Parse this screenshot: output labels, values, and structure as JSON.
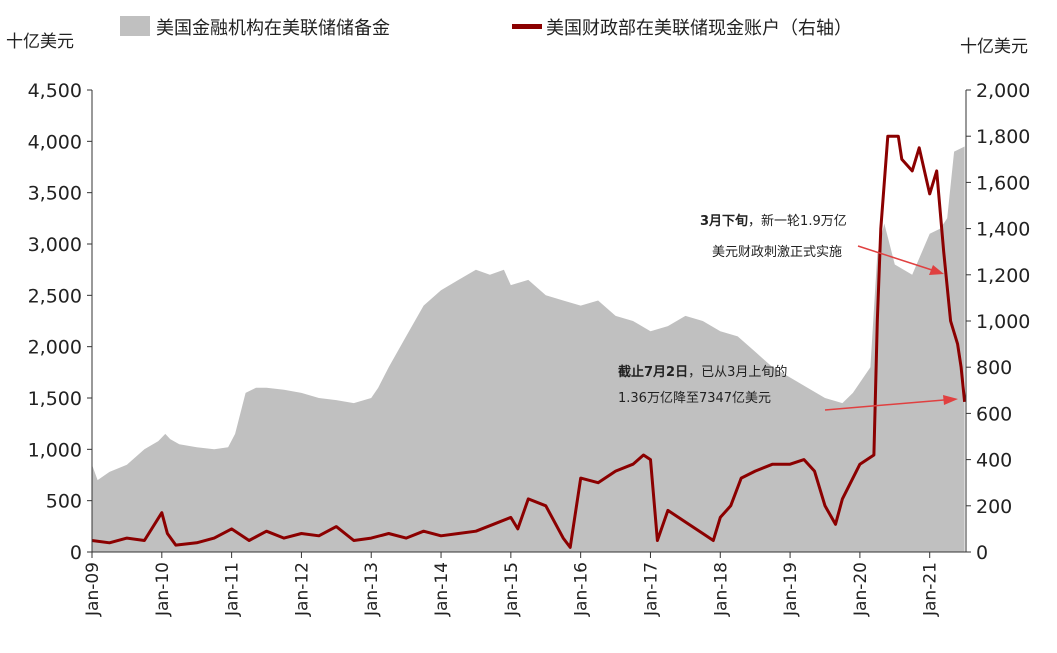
{
  "chart_data": {
    "type": "area+line",
    "left_axis": {
      "unit": "十亿美元",
      "ylim": [
        0,
        4500
      ],
      "ticks": [
        "0",
        "500",
        "1,000",
        "1,500",
        "2,000",
        "2,500",
        "3,000",
        "3,500",
        "4,000",
        "4,500"
      ]
    },
    "right_axis": {
      "unit": "十亿美元",
      "ylim": [
        0,
        2000
      ],
      "ticks": [
        "0",
        "200",
        "400",
        "600",
        "800",
        "1,000",
        "1,200",
        "1,400",
        "1,600",
        "1,800",
        "2,000"
      ]
    },
    "x_ticks": [
      "Jan-09",
      "Jan-10",
      "Jan-11",
      "Jan-12",
      "Jan-13",
      "Jan-14",
      "Jan-15",
      "Jan-16",
      "Jan-17",
      "Jan-18",
      "Jan-19",
      "Jan-20",
      "Jan-21"
    ],
    "xlim": [
      2009.0,
      2021.52
    ],
    "series": [
      {
        "name": "美国金融机构在美联储储备金",
        "axis": "left",
        "kind": "area",
        "color": "#c0c0c0",
        "x": [
          2009.0,
          2009.08,
          2009.25,
          2009.5,
          2009.75,
          2009.95,
          2010.05,
          2010.12,
          2010.25,
          2010.5,
          2010.75,
          2010.95,
          2011.05,
          2011.2,
          2011.35,
          2011.5,
          2011.75,
          2012.0,
          2012.25,
          2012.5,
          2012.75,
          2013.0,
          2013.1,
          2013.25,
          2013.5,
          2013.75,
          2014.0,
          2014.25,
          2014.5,
          2014.7,
          2014.9,
          2015.0,
          2015.25,
          2015.5,
          2015.75,
          2016.0,
          2016.25,
          2016.5,
          2016.75,
          2017.0,
          2017.25,
          2017.5,
          2017.75,
          2018.0,
          2018.25,
          2018.5,
          2018.75,
          2019.0,
          2019.25,
          2019.5,
          2019.75,
          2019.9,
          2020.0,
          2020.15,
          2020.25,
          2020.35,
          2020.5,
          2020.75,
          2021.0,
          2021.15,
          2021.25,
          2021.35,
          2021.5
        ],
        "values": [
          850,
          700,
          780,
          850,
          1000,
          1080,
          1150,
          1100,
          1050,
          1020,
          1000,
          1020,
          1150,
          1550,
          1600,
          1600,
          1580,
          1550,
          1500,
          1480,
          1450,
          1500,
          1600,
          1800,
          2100,
          2400,
          2550,
          2650,
          2750,
          2700,
          2750,
          2600,
          2650,
          2500,
          2450,
          2400,
          2450,
          2300,
          2250,
          2150,
          2200,
          2300,
          2250,
          2150,
          2100,
          1950,
          1800,
          1700,
          1600,
          1500,
          1450,
          1550,
          1650,
          1800,
          2900,
          3200,
          2800,
          2700,
          3100,
          3150,
          3250,
          3900,
          3950
        ]
      },
      {
        "name": "美国财政部在美联储现金账户（右轴）",
        "axis": "right",
        "kind": "line",
        "color": "#8b0000",
        "x": [
          2009.0,
          2009.25,
          2009.5,
          2009.75,
          2010.0,
          2010.08,
          2010.2,
          2010.5,
          2010.75,
          2011.0,
          2011.25,
          2011.5,
          2011.75,
          2012.0,
          2012.25,
          2012.5,
          2012.75,
          2013.0,
          2013.25,
          2013.5,
          2013.75,
          2014.0,
          2014.25,
          2014.5,
          2014.75,
          2015.0,
          2015.1,
          2015.25,
          2015.5,
          2015.75,
          2015.85,
          2016.0,
          2016.25,
          2016.5,
          2016.75,
          2016.9,
          2017.0,
          2017.1,
          2017.25,
          2017.5,
          2017.75,
          2017.9,
          2018.0,
          2018.15,
          2018.3,
          2018.5,
          2018.75,
          2019.0,
          2019.2,
          2019.35,
          2019.5,
          2019.65,
          2019.75,
          2020.0,
          2020.2,
          2020.25,
          2020.3,
          2020.4,
          2020.55,
          2020.6,
          2020.75,
          2020.85,
          2021.0,
          2021.1,
          2021.2,
          2021.3,
          2021.4,
          2021.45,
          2021.5
        ],
        "values": [
          50,
          40,
          60,
          50,
          170,
          80,
          30,
          40,
          60,
          100,
          50,
          90,
          60,
          80,
          70,
          110,
          50,
          60,
          80,
          60,
          90,
          70,
          80,
          90,
          120,
          150,
          100,
          230,
          200,
          60,
          20,
          320,
          300,
          350,
          380,
          420,
          400,
          50,
          180,
          130,
          80,
          50,
          150,
          200,
          320,
          350,
          380,
          380,
          400,
          350,
          200,
          120,
          230,
          380,
          420,
          1000,
          1400,
          1800,
          1800,
          1700,
          1650,
          1750,
          1550,
          1650,
          1300,
          1000,
          900,
          800,
          650
        ]
      }
    ],
    "annotations": [
      {
        "bold": "3月下旬",
        "text": "，新一轮1.9万亿",
        "text2": "美元财政刺激正式实施"
      },
      {
        "bold": "截止7月2日",
        "text": "，已从3月上旬的",
        "text2": "1.36万亿降至7347亿美元"
      }
    ],
    "grid": false,
    "legend_placement": "top"
  }
}
